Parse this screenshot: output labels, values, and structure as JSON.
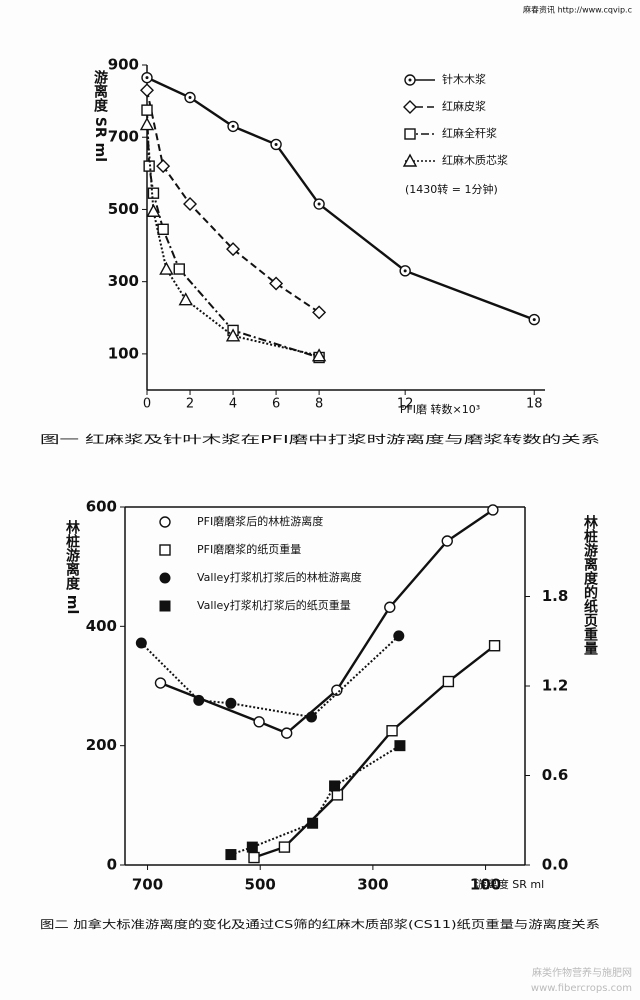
{
  "header": "麻春资讯 http://www.cqvip.c",
  "watermark": [
    "麻类作物营养与施肥网",
    "www.fibercrops.com"
  ],
  "chart_data": [
    {
      "type": "line",
      "title": "图一 红麻浆及针叶木浆在PFI磨中打浆时游离度与磨浆转数的关系",
      "ylabel": "游离度 SR ml",
      "xlabel": "PFI磨 转数×10³",
      "note": "(1430转 = 1分钟)",
      "xlim": [
        0,
        18.5
      ],
      "ylim": [
        0,
        900
      ],
      "xticks": [
        0,
        2,
        4,
        6,
        8,
        12,
        18
      ],
      "yticks": [
        100,
        300,
        500,
        700,
        900
      ],
      "series": [
        {
          "name": "针木木浆",
          "color": "#111111",
          "marker": "circle-dot",
          "dash": "solid",
          "x": [
            0,
            2,
            4,
            6,
            8,
            12,
            18
          ],
          "values": [
            865,
            810,
            730,
            680,
            515,
            330,
            195
          ]
        },
        {
          "name": "红麻皮浆",
          "color": "#111111",
          "marker": "diamond",
          "dash": "dashed",
          "x": [
            0,
            0.75,
            2,
            4,
            6,
            8
          ],
          "values": [
            830,
            620,
            515,
            390,
            295,
            215
          ]
        },
        {
          "name": "红麻全秆浆",
          "color": "#111111",
          "marker": "square",
          "dash": "dashdot",
          "x": [
            0,
            0.1,
            0.3,
            0.75,
            1.5,
            4,
            8
          ],
          "values": [
            775,
            620,
            545,
            445,
            335,
            165,
            90
          ]
        },
        {
          "name": "红麻木质芯浆",
          "color": "#111111",
          "marker": "triangle",
          "dash": "dotted",
          "x": [
            0,
            0.3,
            0.9,
            1.8,
            4,
            8
          ],
          "values": [
            735,
            495,
            335,
            250,
            150,
            95
          ]
        }
      ]
    },
    {
      "type": "line",
      "title": "图二 加拿大标准游离度的变化及通过CS筛的红麻木质部浆(CS11)纸页重量与游离度关系",
      "ylabel": "林桩游离度 ml",
      "y2label": "林桩游离度的纸页重量",
      "xlabel": "游离度 SR ml",
      "xlim": [
        740,
        30
      ],
      "ylim": [
        0,
        600
      ],
      "y2lim": [
        0,
        2.4
      ],
      "xticks": [
        700,
        500,
        300,
        100
      ],
      "yticks": [
        0,
        200,
        400,
        600
      ],
      "y2ticks": [
        {
          "value": 0,
          "label": "0.0"
        },
        0.6,
        1.2,
        1.8
      ],
      "series": [
        {
          "name": "PFI磨磨浆后的林桩游离度",
          "color": "#111111",
          "marker": "circle-open",
          "dash": "solid",
          "x": [
            677,
            502,
            453,
            364,
            270,
            168,
            87
          ],
          "values": [
            305,
            240,
            221,
            293,
            432,
            543,
            595
          ]
        },
        {
          "name": "PFI磨磨浆的纸页重量",
          "color": "#111111",
          "marker": "square-open",
          "dash": "solid",
          "axis": "y2",
          "x": [
            511,
            457,
            363,
            266,
            166,
            84
          ],
          "values": [
            0.05,
            0.12,
            0.47,
            0.9,
            1.23,
            1.47
          ]
        },
        {
          "name": "Valley打浆机打浆后的林桩游离度",
          "color": "#111111",
          "marker": "circle-filled",
          "dash": "dotted",
          "x": [
            711,
            609,
            552,
            409,
            254
          ],
          "values": [
            372,
            276,
            271,
            248,
            384
          ]
        },
        {
          "name": "Valley打浆机打浆后的纸页重量",
          "color": "#111111",
          "marker": "square-filled",
          "dash": "dotted",
          "axis": "y2",
          "x": [
            552,
            514,
            407,
            368,
            252
          ],
          "values": [
            0.07,
            0.12,
            0.28,
            0.53,
            0.8
          ]
        }
      ]
    }
  ]
}
